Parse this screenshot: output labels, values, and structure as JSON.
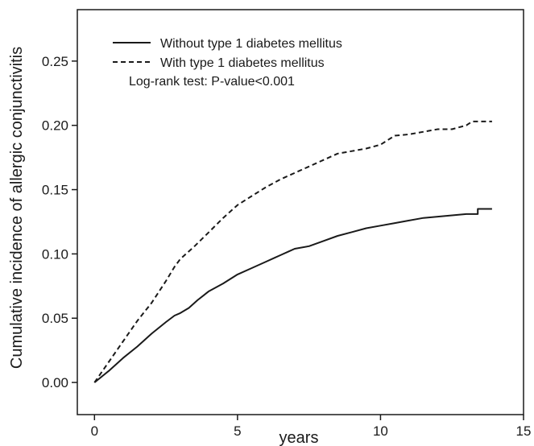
{
  "chart_data": {
    "type": "line",
    "title": "",
    "xlabel": "years",
    "ylabel": "Cumulative incidence of allergic conjunctivitis",
    "xlim": [
      -0.6,
      15
    ],
    "ylim": [
      -0.025,
      0.29
    ],
    "x_ticks": [
      0,
      5,
      10,
      15
    ],
    "x_tick_labels": [
      "0",
      "5",
      "10",
      "15"
    ],
    "y_ticks": [
      0.0,
      0.05,
      0.1,
      0.15,
      0.2,
      0.25
    ],
    "y_tick_labels": [
      "0.00",
      "0.05",
      "0.10",
      "0.15",
      "0.20",
      "0.25"
    ],
    "grid": false,
    "legend_position": "top-left",
    "annotation": "Log-rank test: P-value<0.001",
    "series": [
      {
        "name": "Without type 1 diabetes mellitus",
        "line_style": "solid",
        "color": "#1a1a1a",
        "points": [
          [
            0,
            0
          ],
          [
            0.5,
            0.009
          ],
          [
            1,
            0.019
          ],
          [
            1.5,
            0.028
          ],
          [
            2,
            0.038
          ],
          [
            2.5,
            0.047
          ],
          [
            2.8,
            0.052
          ],
          [
            3,
            0.054
          ],
          [
            3.3,
            0.058
          ],
          [
            3.6,
            0.064
          ],
          [
            4,
            0.071
          ],
          [
            4.5,
            0.077
          ],
          [
            5,
            0.084
          ],
          [
            5.5,
            0.089
          ],
          [
            6,
            0.094
          ],
          [
            6.3,
            0.097
          ],
          [
            6.5,
            0.099
          ],
          [
            6.8,
            0.102
          ],
          [
            7,
            0.104
          ],
          [
            7.5,
            0.106
          ],
          [
            8,
            0.11
          ],
          [
            8.5,
            0.114
          ],
          [
            9,
            0.117
          ],
          [
            9.5,
            0.12
          ],
          [
            10,
            0.122
          ],
          [
            10.5,
            0.124
          ],
          [
            11,
            0.126
          ],
          [
            11.5,
            0.128
          ],
          [
            12,
            0.129
          ],
          [
            12.5,
            0.13
          ],
          [
            13,
            0.131
          ],
          [
            13.4,
            0.131
          ],
          [
            13.4,
            0.135
          ],
          [
            13.9,
            0.135
          ]
        ]
      },
      {
        "name": "With type 1 diabetes mellitus",
        "line_style": "dashed",
        "color": "#1a1a1a",
        "points": [
          [
            0,
            0
          ],
          [
            0.5,
            0.016
          ],
          [
            1,
            0.032
          ],
          [
            1.5,
            0.048
          ],
          [
            2,
            0.062
          ],
          [
            2.5,
            0.079
          ],
          [
            2.8,
            0.09
          ],
          [
            3,
            0.096
          ],
          [
            3.5,
            0.106
          ],
          [
            4,
            0.117
          ],
          [
            4.5,
            0.128
          ],
          [
            5,
            0.138
          ],
          [
            5.5,
            0.145
          ],
          [
            6,
            0.152
          ],
          [
            6.5,
            0.158
          ],
          [
            7,
            0.163
          ],
          [
            7.5,
            0.168
          ],
          [
            8,
            0.173
          ],
          [
            8.5,
            0.178
          ],
          [
            9,
            0.18
          ],
          [
            9.5,
            0.182
          ],
          [
            10,
            0.185
          ],
          [
            10.5,
            0.192
          ],
          [
            11,
            0.193
          ],
          [
            11.5,
            0.195
          ],
          [
            12,
            0.197
          ],
          [
            12.5,
            0.197
          ],
          [
            13,
            0.2
          ],
          [
            13.2,
            0.203
          ],
          [
            13.9,
            0.203
          ]
        ]
      }
    ]
  }
}
